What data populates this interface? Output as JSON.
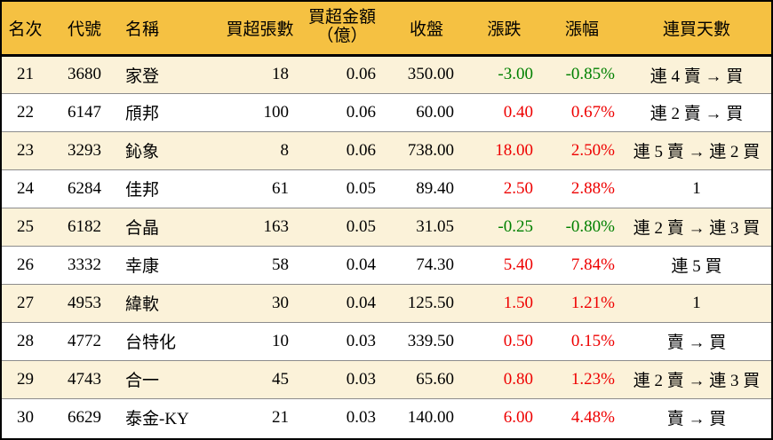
{
  "colors": {
    "header_bg": "#f5c142",
    "row_alt_bg": "#fbf2d9",
    "row_bg": "#ffffff",
    "up": "#ee0000",
    "down": "#008000",
    "border": "#000000",
    "row_separator": "#8c8c8c"
  },
  "header": {
    "rank": "名次",
    "code": "代號",
    "name": "名稱",
    "volume": "買超張數",
    "amount_line1": "買超金額",
    "amount_line2": "（億）",
    "close": "收盤",
    "change": "漲跌",
    "pct": "漲幅",
    "streak": "連買天數"
  },
  "chart_data": {
    "type": "table",
    "columns": [
      "名次",
      "代號",
      "名稱",
      "買超張數",
      "買超金額（億）",
      "收盤",
      "漲跌",
      "漲幅",
      "連買天數"
    ],
    "rows": [
      {
        "rank": "21",
        "code": "3680",
        "name": "家登",
        "volume": "18",
        "amount": "0.06",
        "close": "350.00",
        "change": "-3.00",
        "pct": "-0.85%",
        "streak": "連 4 賣 → 買",
        "direction": "down"
      },
      {
        "rank": "22",
        "code": "6147",
        "name": "頎邦",
        "volume": "100",
        "amount": "0.06",
        "close": "60.00",
        "change": "0.40",
        "pct": "0.67%",
        "streak": "連 2 賣 → 買",
        "direction": "up"
      },
      {
        "rank": "23",
        "code": "3293",
        "name": "鈊象",
        "volume": "8",
        "amount": "0.06",
        "close": "738.00",
        "change": "18.00",
        "pct": "2.50%",
        "streak": "連 5 賣 → 連 2 買",
        "direction": "up"
      },
      {
        "rank": "24",
        "code": "6284",
        "name": "佳邦",
        "volume": "61",
        "amount": "0.05",
        "close": "89.40",
        "change": "2.50",
        "pct": "2.88%",
        "streak": "1",
        "direction": "up"
      },
      {
        "rank": "25",
        "code": "6182",
        "name": "合晶",
        "volume": "163",
        "amount": "0.05",
        "close": "31.05",
        "change": "-0.25",
        "pct": "-0.80%",
        "streak": "連 2 賣 → 連 3 買",
        "direction": "down"
      },
      {
        "rank": "26",
        "code": "3332",
        "name": "幸康",
        "volume": "58",
        "amount": "0.04",
        "close": "74.30",
        "change": "5.40",
        "pct": "7.84%",
        "streak": "連 5 買",
        "direction": "up"
      },
      {
        "rank": "27",
        "code": "4953",
        "name": "緯軟",
        "volume": "30",
        "amount": "0.04",
        "close": "125.50",
        "change": "1.50",
        "pct": "1.21%",
        "streak": "1",
        "direction": "up"
      },
      {
        "rank": "28",
        "code": "4772",
        "name": "台特化",
        "volume": "10",
        "amount": "0.03",
        "close": "339.50",
        "change": "0.50",
        "pct": "0.15%",
        "streak": "賣 → 買",
        "direction": "up"
      },
      {
        "rank": "29",
        "code": "4743",
        "name": "合一",
        "volume": "45",
        "amount": "0.03",
        "close": "65.60",
        "change": "0.80",
        "pct": "1.23%",
        "streak": "連 2 賣 → 連 3 買",
        "direction": "up"
      },
      {
        "rank": "30",
        "code": "6629",
        "name": "泰金-KY",
        "volume": "21",
        "amount": "0.03",
        "close": "140.00",
        "change": "6.00",
        "pct": "4.48%",
        "streak": "賣 → 買",
        "direction": "up"
      }
    ]
  }
}
